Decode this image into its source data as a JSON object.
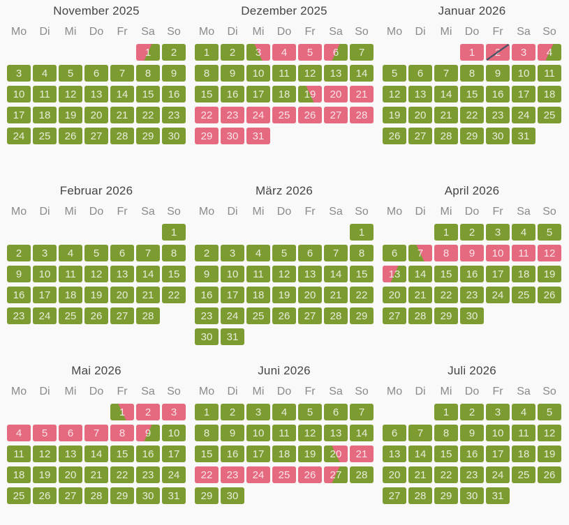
{
  "colors": {
    "available_green": "#7c9b31",
    "occupied_pink": "#e5697f",
    "slash_line": "#4a5568",
    "title_text": "#454545",
    "weekday_text": "#8a8a8a",
    "page_background": "#f9f9f9"
  },
  "weekdays": [
    "Mo",
    "Di",
    "Mi",
    "Do",
    "Fr",
    "Sa",
    "So"
  ],
  "months": [
    {
      "title": "November 2025",
      "first_day_col": 5,
      "days_in_month": 30,
      "checkin_days": [],
      "occupied_days": [],
      "checkout_days": [
        1
      ],
      "slashed_days": []
    },
    {
      "title": "Dezember 2025",
      "first_day_col": 0,
      "days_in_month": 31,
      "checkin_days": [
        3,
        19
      ],
      "occupied_days": [
        4,
        5,
        20,
        21,
        22,
        23,
        24,
        25,
        26,
        27,
        28,
        29,
        30,
        31
      ],
      "checkout_days": [
        6
      ],
      "slashed_days": []
    },
    {
      "title": "Januar 2026",
      "first_day_col": 3,
      "days_in_month": 31,
      "checkin_days": [],
      "occupied_days": [
        1,
        2,
        3
      ],
      "checkout_days": [
        4
      ],
      "slashed_days": [
        2
      ]
    },
    {
      "title": "Februar 2026",
      "first_day_col": 6,
      "days_in_month": 28,
      "checkin_days": [],
      "occupied_days": [],
      "checkout_days": [],
      "slashed_days": []
    },
    {
      "title": "März 2026",
      "first_day_col": 6,
      "days_in_month": 31,
      "checkin_days": [],
      "occupied_days": [],
      "checkout_days": [],
      "slashed_days": []
    },
    {
      "title": "April 2026",
      "first_day_col": 2,
      "days_in_month": 30,
      "checkin_days": [
        7
      ],
      "occupied_days": [
        8,
        9,
        10,
        11,
        12
      ],
      "checkout_days": [
        13
      ],
      "slashed_days": []
    },
    {
      "title": "Mai 2026",
      "first_day_col": 4,
      "days_in_month": 31,
      "checkin_days": [
        1
      ],
      "occupied_days": [
        2,
        3,
        4,
        5,
        6,
        7,
        8
      ],
      "checkout_days": [
        9
      ],
      "slashed_days": []
    },
    {
      "title": "Juni 2026",
      "first_day_col": 0,
      "days_in_month": 30,
      "checkin_days": [
        20
      ],
      "occupied_days": [
        21,
        22,
        23,
        24,
        25,
        26
      ],
      "checkout_days": [
        27
      ],
      "slashed_days": []
    },
    {
      "title": "Juli 2026",
      "first_day_col": 2,
      "days_in_month": 31,
      "checkin_days": [],
      "occupied_days": [],
      "checkout_days": [],
      "slashed_days": []
    }
  ]
}
